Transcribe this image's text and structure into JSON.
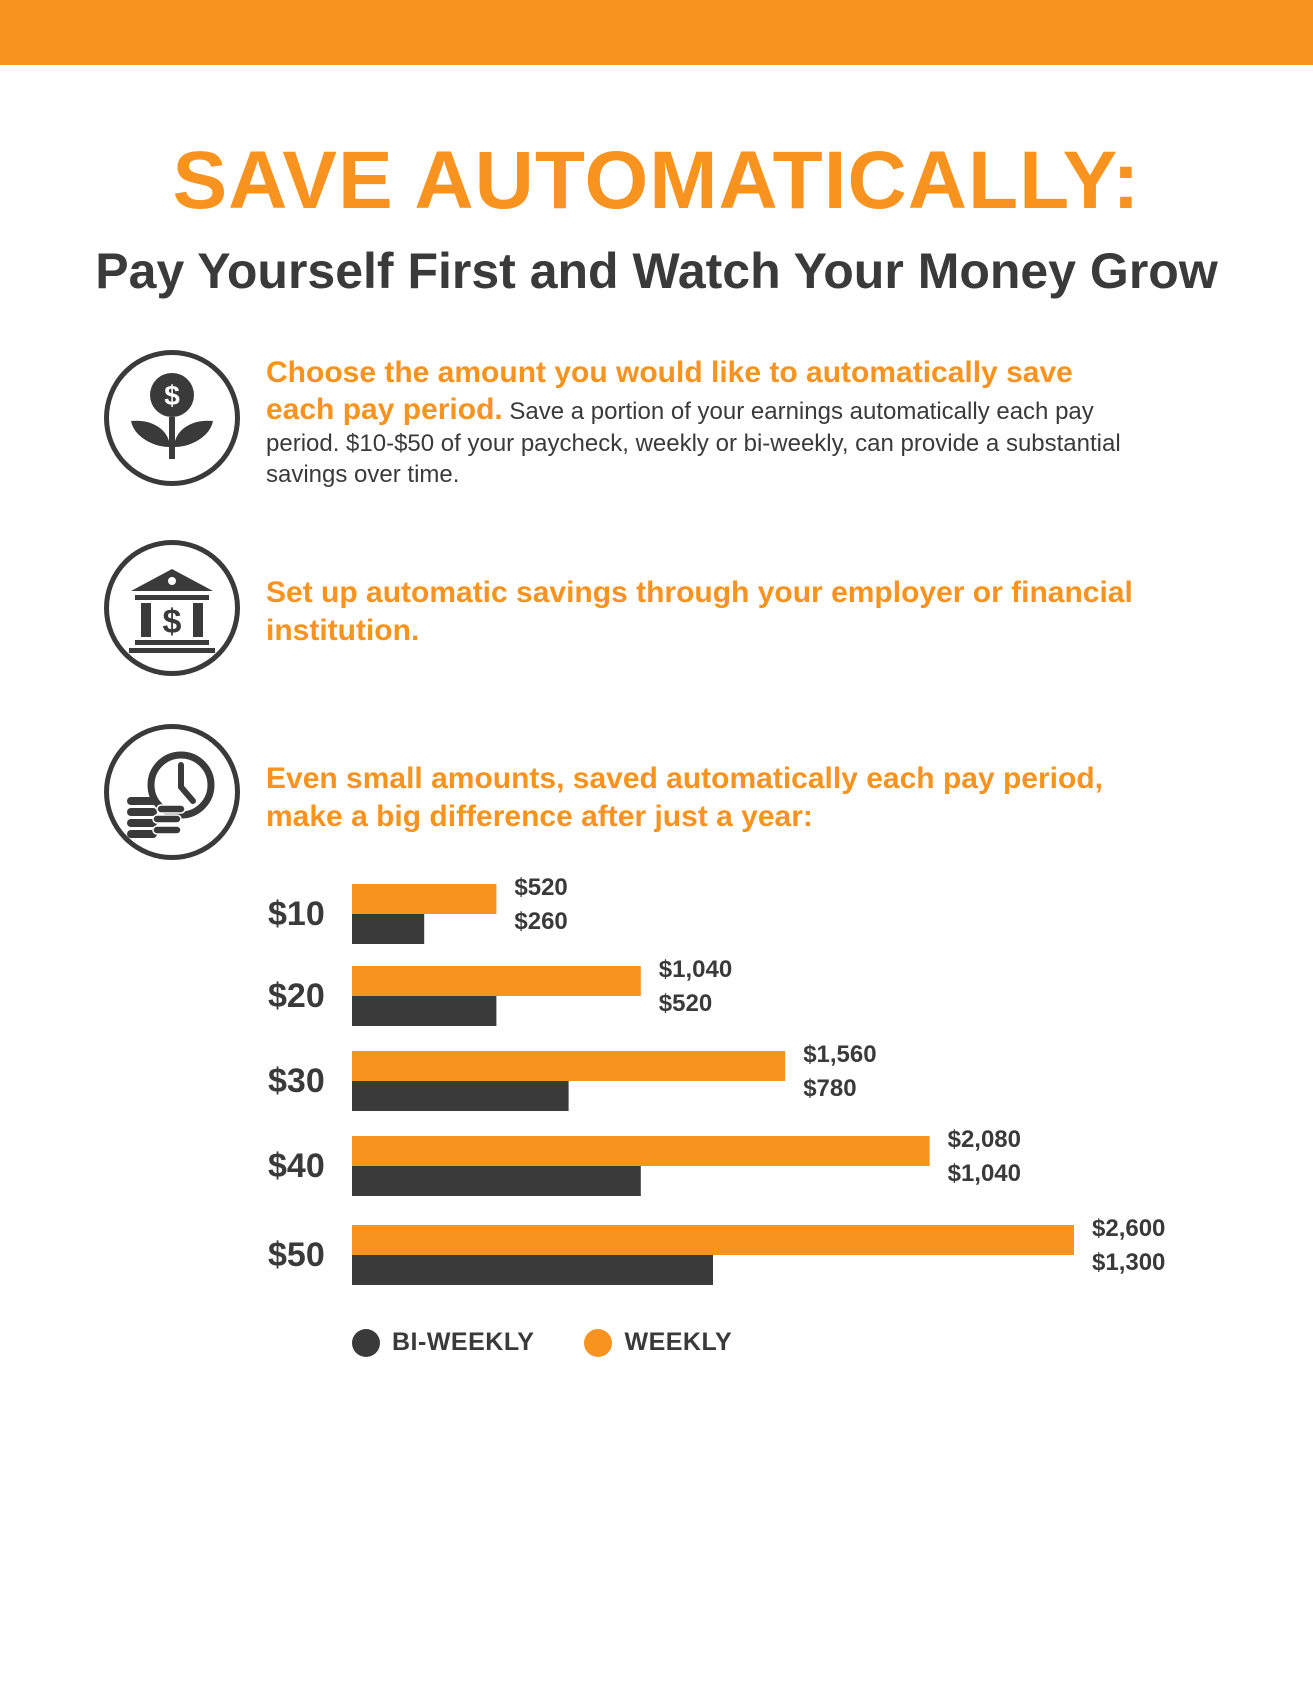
{
  "header": {
    "title": "SAVE AUTOMATICALLY:",
    "subtitle": "Pay Yourself First and Watch Your Money Grow"
  },
  "colors": {
    "accent": "#f7931e",
    "dark": "#3a3a3a"
  },
  "sections": [
    {
      "icon": "dollar-plant-icon",
      "highlight": "Choose the amount you would like to automatically save each pay period.",
      "body": "Save a portion of your earnings automatically each pay period. $10-$50 of your paycheck, weekly or bi-weekly, can provide a substantial savings over time."
    },
    {
      "icon": "bank-icon",
      "highlight": "Set up automatic savings through your employer or financial institution."
    },
    {
      "icon": "clock-coins-icon",
      "highlight": "Even small amounts, saved automatically each pay period, make a big difference after just a year:"
    }
  ],
  "chart_data": {
    "type": "bar",
    "orientation": "horizontal",
    "categories": [
      "$10",
      "$20",
      "$30",
      "$40",
      "$50"
    ],
    "series": [
      {
        "name": "WEEKLY",
        "color": "#f7931e",
        "values": [
          520,
          1040,
          1560,
          2080,
          2600
        ],
        "labels": [
          "$520",
          "$1,040",
          "$1,560",
          "$2,080",
          "$2,600"
        ]
      },
      {
        "name": "BI-WEEKLY",
        "color": "#3a3a3a",
        "values": [
          260,
          520,
          780,
          1040,
          1300
        ],
        "labels": [
          "$260",
          "$520",
          "$780",
          "$1,040",
          "$1,300"
        ]
      }
    ],
    "xlim": [
      0,
      2600
    ],
    "grid": false,
    "legend": [
      {
        "name": "BI-WEEKLY",
        "color": "#3a3a3a"
      },
      {
        "name": "WEEKLY",
        "color": "#f7931e"
      }
    ],
    "legend_position": "bottom-left"
  }
}
